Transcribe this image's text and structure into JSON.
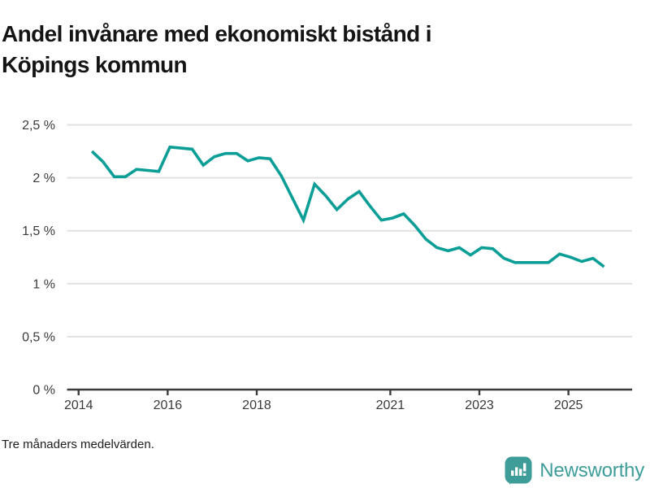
{
  "page": {
    "title_line1": "Andel invånare med ekonomiskt bistånd i",
    "title_line2": "Köpings kommun",
    "footnote": "Tre månaders medelvärden.",
    "brand": {
      "name": "Newsworthy",
      "icon": "newsworthy-speech-bubble-barchart-icon",
      "color": "#3e9d99"
    }
  },
  "chart_data": {
    "type": "line",
    "title": "Andel invånare med ekonomiskt bistånd i Köpings kommun",
    "subtitle": "Tre månaders medelvärden.",
    "xlabel": "",
    "ylabel": "",
    "grid": true,
    "legend": "none",
    "line_color": "#0b9e96",
    "grid_color": "#e1e1e1",
    "axis_color": "#3a3a3a",
    "tick_label_color": "#3a3a3a",
    "xlim": [
      2013.74,
      2026.43
    ],
    "ylim": [
      0,
      2.5
    ],
    "y_ticks": [
      {
        "value": 0,
        "label": "0 %"
      },
      {
        "value": 0.5,
        "label": "0,5 %"
      },
      {
        "value": 1,
        "label": "1 %"
      },
      {
        "value": 1.5,
        "label": "1,5 %"
      },
      {
        "value": 2,
        "label": "2 %"
      },
      {
        "value": 2.5,
        "label": "2,5 %"
      }
    ],
    "x_ticks": [
      {
        "value": 2014,
        "label": "2014"
      },
      {
        "value": 2016,
        "label": "2016"
      },
      {
        "value": 2018,
        "label": "2018"
      },
      {
        "value": 2021,
        "label": "2021"
      },
      {
        "value": 2023,
        "label": "2023"
      },
      {
        "value": 2025,
        "label": "2025"
      }
    ],
    "series": [
      {
        "name": "Andel invånare med ekonomiskt bistånd",
        "unit": "%",
        "x": [
          2014.3,
          2014.55,
          2014.8,
          2015.05,
          2015.3,
          2015.55,
          2015.8,
          2016.05,
          2016.3,
          2016.55,
          2016.8,
          2017.05,
          2017.3,
          2017.55,
          2017.8,
          2018.05,
          2018.3,
          2018.55,
          2018.8,
          2019.05,
          2019.3,
          2019.55,
          2019.8,
          2020.05,
          2020.3,
          2020.55,
          2020.8,
          2021.05,
          2021.3,
          2021.55,
          2021.8,
          2022.05,
          2022.3,
          2022.55,
          2022.8,
          2023.05,
          2023.3,
          2023.55,
          2023.8,
          2024.05,
          2024.3,
          2024.55,
          2024.8,
          2025.05,
          2025.3,
          2025.55,
          2025.8
        ],
        "values": [
          2.25,
          2.15,
          2.01,
          2.01,
          2.08,
          2.07,
          2.06,
          2.29,
          2.28,
          2.27,
          2.12,
          2.2,
          2.23,
          2.23,
          2.16,
          2.19,
          2.18,
          2.02,
          1.81,
          1.6,
          1.94,
          1.83,
          1.7,
          1.8,
          1.87,
          1.73,
          1.6,
          1.62,
          1.66,
          1.55,
          1.42,
          1.34,
          1.31,
          1.34,
          1.27,
          1.34,
          1.33,
          1.24,
          1.2,
          1.2,
          1.2,
          1.2,
          1.28,
          1.25,
          1.21,
          1.24,
          1.16
        ]
      }
    ]
  }
}
